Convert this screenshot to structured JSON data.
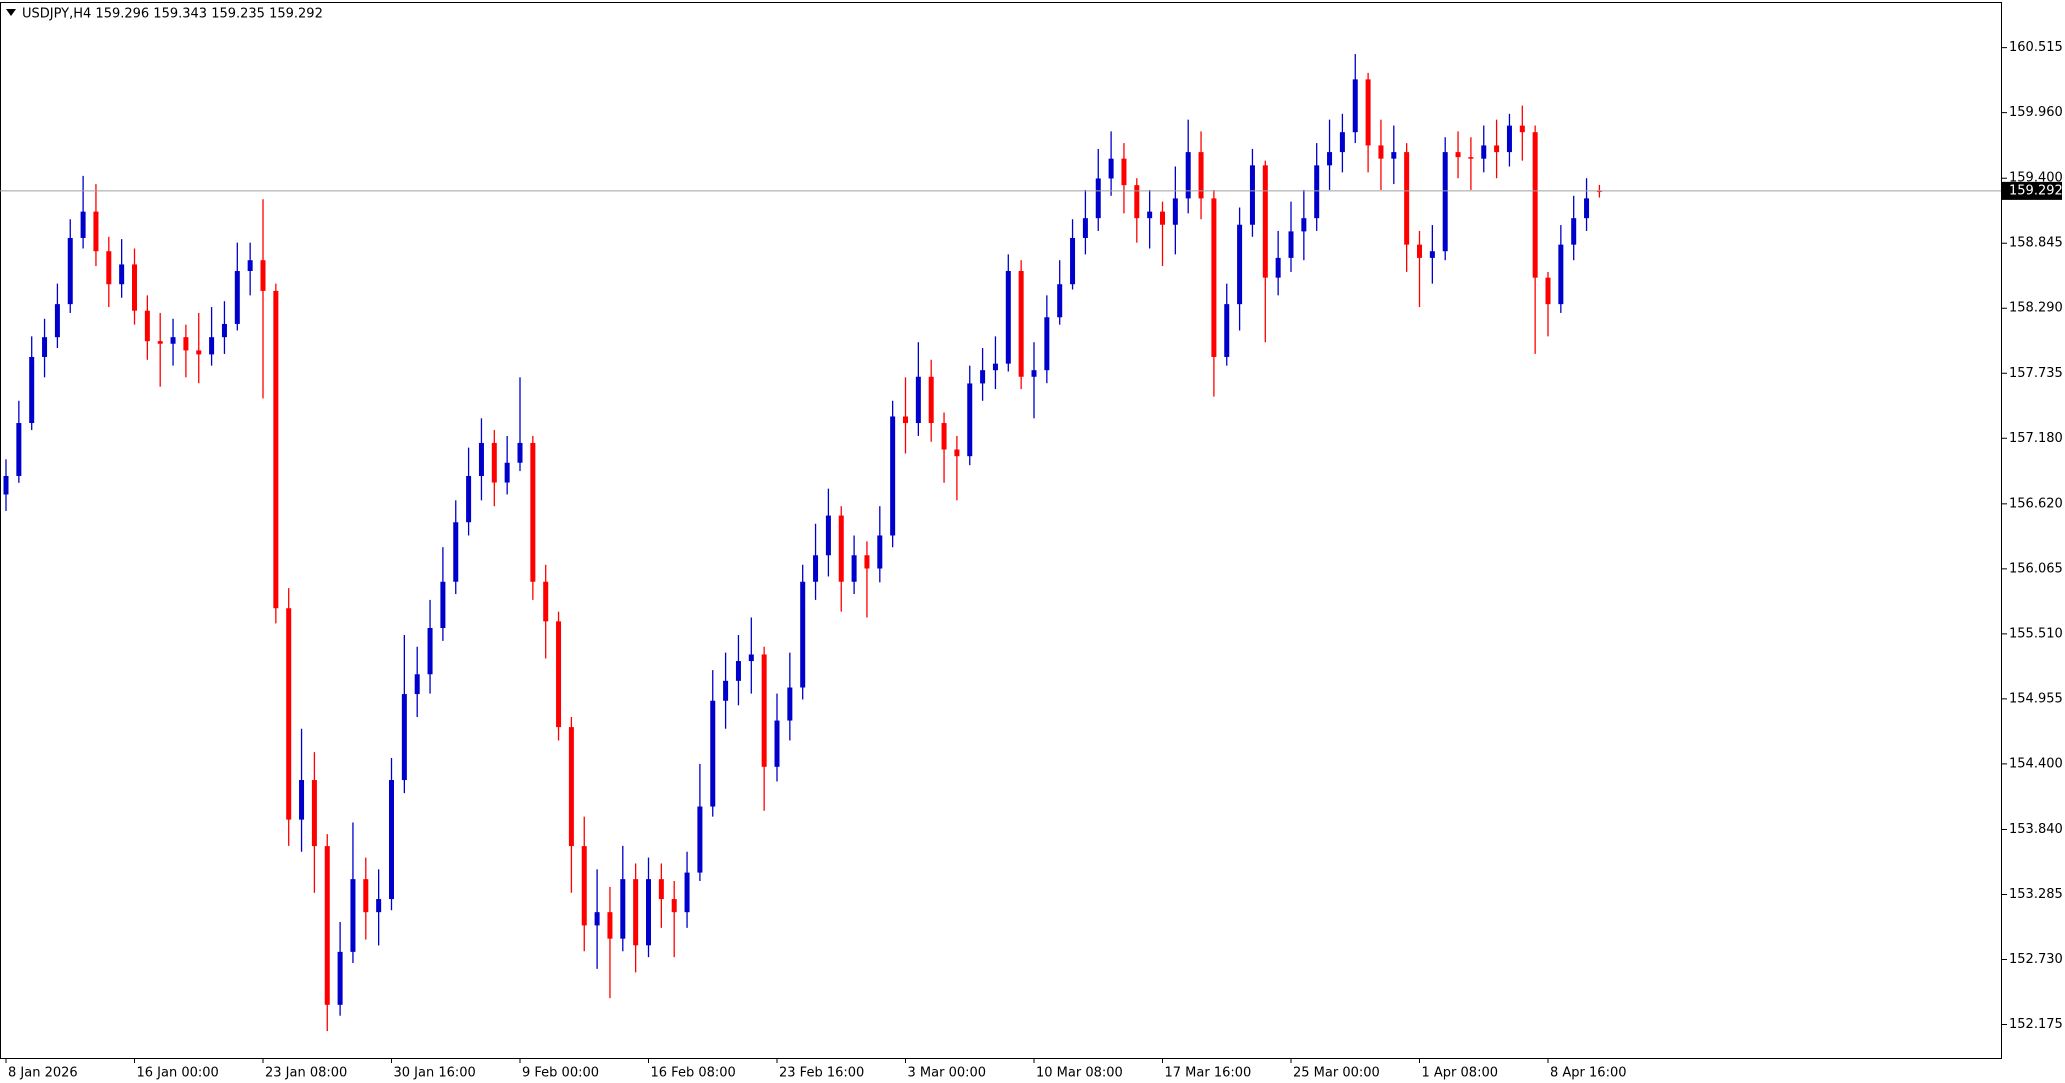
{
  "chart_data": {
    "type": "candlestick",
    "title": "USDJPY,H4  159.296 159.343 159.235 159.292",
    "up_color": "#0000cc",
    "down_color": "#ff0000",
    "last_price": 159.292,
    "last_price_line_color": "#a0a0a0",
    "grid": false,
    "ylim": [
      151.889,
      160.896
    ],
    "yticks": [
      160.515,
      {
        "value": 159.96,
        "label": "159.960"
      },
      {
        "value": 159.4,
        "label": "159.400"
      },
      158.845,
      {
        "value": 158.29,
        "label": "158.290"
      },
      157.735,
      {
        "value": 157.18,
        "label": "157.180"
      },
      {
        "value": 156.62,
        "label": "156.620"
      },
      156.065,
      {
        "value": 155.51,
        "label": "155.510"
      },
      154.955,
      {
        "value": 154.4,
        "label": "154.400"
      },
      {
        "value": 153.84,
        "label": "153.840"
      },
      153.285,
      {
        "value": 152.73,
        "label": "152.730"
      },
      152.175
    ],
    "categories": [
      "8 Jan 2026",
      null,
      null,
      null,
      null,
      null,
      null,
      null,
      null,
      null,
      "16 Jan 00:00",
      null,
      null,
      null,
      null,
      null,
      null,
      null,
      null,
      null,
      "23 Jan 08:00",
      null,
      null,
      null,
      null,
      null,
      null,
      null,
      null,
      null,
      "30 Jan 16:00",
      null,
      null,
      null,
      null,
      null,
      null,
      null,
      null,
      null,
      "9 Feb 00:00",
      null,
      null,
      null,
      null,
      null,
      null,
      null,
      null,
      null,
      "16 Feb 08:00",
      null,
      null,
      null,
      null,
      null,
      null,
      null,
      null,
      null,
      "23 Feb 16:00",
      null,
      null,
      null,
      null,
      null,
      null,
      null,
      null,
      null,
      "3 Mar 00:00",
      null,
      null,
      null,
      null,
      null,
      null,
      null,
      null,
      null,
      "10 Mar 08:00",
      null,
      null,
      null,
      null,
      null,
      null,
      null,
      null,
      null,
      "17 Mar 16:00",
      null,
      null,
      null,
      null,
      null,
      null,
      null,
      null,
      null,
      "25 Mar 00:00",
      null,
      null,
      null,
      null,
      null,
      null,
      null,
      null,
      null,
      "1 Apr 08:00",
      null,
      null,
      null,
      null,
      null,
      null,
      null,
      null,
      null,
      "8 Apr 16:00",
      null,
      null,
      null,
      null
    ],
    "open": [
      156.7,
      156.858,
      157.31,
      157.874,
      158.043,
      158.325,
      158.89,
      159.115,
      158.777,
      158.495,
      158.664,
      158.269,
      158.009,
      157.987,
      158.043,
      157.93,
      157.896,
      158.043,
      158.156,
      158.608,
      158.7,
      158.438,
      155.729,
      153.924,
      154.262,
      153.698,
      152.343,
      152.795,
      153.416,
      153.134,
      153.246,
      154.262,
      154.996,
      155.165,
      155.56,
      155.955,
      156.463,
      156.858,
      157.14,
      156.802,
      156.971,
      157.14,
      155.955,
      155.617,
      154.714,
      153.698,
      153.021,
      153.134,
      152.908,
      153.416,
      152.851,
      153.416,
      153.246,
      153.134,
      153.472,
      154.036,
      154.939,
      155.109,
      155.278,
      155.334,
      154.375,
      154.77,
      155.052,
      155.955,
      156.181,
      156.52,
      155.955,
      156.181,
      156.068,
      156.35,
      157.366,
      157.31,
      157.705,
      157.31,
      157.084,
      157.027,
      157.648,
      157.761,
      157.817,
      158.608,
      157.705,
      157.761,
      158.213,
      158.495,
      158.89,
      159.059,
      159.398,
      159.567,
      159.341,
      159.059,
      159.115,
      159.003,
      159.228,
      159.623,
      159.228,
      157.874,
      158.325,
      159.003,
      159.51,
      158.551,
      158.72,
      158.946,
      159.059,
      159.51,
      159.623,
      159.793,
      160.244,
      159.68,
      159.567,
      159.623,
      158.833,
      158.72,
      158.777,
      159.623,
      159.58,
      159.567,
      159.68,
      159.623,
      159.849,
      159.793,
      158.551,
      158.325,
      158.833,
      159.059,
      159.296
    ],
    "high": [
      157.0,
      157.5,
      158.05,
      158.2,
      158.5,
      159.05,
      159.42,
      159.35,
      158.9,
      158.88,
      158.8,
      158.4,
      158.25,
      158.2,
      158.15,
      158.25,
      158.3,
      158.35,
      158.85,
      158.85,
      159.22,
      158.5,
      155.9,
      154.7,
      154.5,
      153.8,
      153.05,
      153.9,
      153.6,
      153.5,
      154.45,
      155.5,
      155.4,
      155.8,
      156.25,
      156.65,
      157.1,
      157.35,
      157.25,
      157.2,
      157.7,
      157.2,
      156.1,
      155.7,
      154.8,
      153.95,
      153.5,
      153.35,
      153.7,
      153.55,
      153.6,
      153.55,
      153.4,
      153.65,
      154.4,
      155.2,
      155.35,
      155.5,
      155.65,
      155.4,
      155.0,
      155.35,
      156.1,
      156.45,
      156.75,
      156.6,
      156.35,
      156.3,
      156.6,
      157.5,
      157.7,
      158.0,
      157.85,
      157.4,
      157.2,
      157.8,
      157.95,
      158.05,
      158.75,
      158.7,
      158.0,
      158.4,
      158.7,
      159.05,
      159.3,
      159.65,
      159.8,
      159.7,
      159.4,
      159.3,
      159.2,
      159.5,
      159.9,
      159.8,
      159.3,
      158.5,
      159.15,
      159.65,
      159.55,
      158.95,
      159.2,
      159.3,
      159.7,
      159.9,
      159.95,
      160.46,
      160.3,
      159.9,
      159.85,
      159.7,
      158.95,
      159.0,
      159.75,
      159.8,
      159.75,
      159.85,
      159.9,
      159.95,
      160.02,
      159.85,
      158.6,
      159.0,
      159.25,
      159.4,
      159.343
    ],
    "low": [
      156.56,
      156.8,
      157.25,
      157.7,
      157.95,
      158.25,
      158.8,
      158.65,
      158.3,
      158.38,
      158.15,
      157.85,
      157.62,
      157.8,
      157.7,
      157.65,
      157.8,
      157.9,
      158.1,
      158.4,
      157.52,
      155.6,
      153.7,
      153.65,
      153.3,
      152.118,
      152.25,
      152.7,
      152.9,
      152.85,
      153.15,
      154.15,
      154.8,
      155.0,
      155.45,
      155.85,
      156.35,
      156.65,
      156.6,
      156.7,
      156.9,
      155.8,
      155.3,
      154.6,
      153.3,
      152.8,
      152.65,
      152.4,
      152.8,
      152.62,
      152.75,
      153.0,
      152.75,
      153.0,
      153.4,
      153.95,
      154.7,
      154.9,
      155.0,
      154.0,
      154.25,
      154.6,
      154.95,
      155.8,
      156.0,
      155.7,
      155.85,
      155.65,
      155.95,
      156.25,
      157.05,
      157.2,
      157.15,
      156.8,
      156.65,
      156.95,
      157.5,
      157.6,
      157.75,
      157.6,
      157.35,
      157.65,
      158.15,
      158.45,
      158.75,
      158.95,
      159.25,
      159.1,
      158.85,
      158.8,
      158.65,
      158.75,
      159.1,
      159.05,
      157.535,
      157.8,
      158.1,
      158.9,
      158.0,
      158.4,
      158.6,
      158.7,
      158.95,
      159.3,
      159.45,
      159.7,
      159.45,
      159.3,
      159.35,
      158.6,
      158.3,
      158.5,
      158.7,
      159.4,
      159.3,
      159.45,
      159.4,
      159.5,
      159.55,
      157.9,
      158.05,
      158.25,
      158.7,
      158.95,
      159.235
    ],
    "close": [
      156.858,
      157.31,
      157.874,
      158.043,
      158.325,
      158.89,
      159.115,
      158.777,
      158.495,
      158.664,
      158.269,
      158.009,
      157.987,
      158.043,
      157.93,
      157.896,
      158.043,
      158.156,
      158.608,
      158.7,
      158.438,
      155.729,
      153.924,
      154.262,
      153.698,
      152.343,
      152.795,
      153.416,
      153.134,
      153.246,
      154.262,
      154.996,
      155.165,
      155.56,
      155.955,
      156.463,
      156.858,
      157.14,
      156.802,
      156.971,
      157.14,
      155.955,
      155.617,
      154.714,
      153.698,
      153.021,
      153.134,
      152.908,
      153.416,
      152.851,
      153.416,
      153.246,
      153.134,
      153.472,
      154.036,
      154.939,
      155.109,
      155.278,
      155.334,
      154.375,
      154.77,
      155.052,
      155.955,
      156.181,
      156.52,
      155.955,
      156.181,
      156.068,
      156.35,
      157.366,
      157.31,
      157.705,
      157.31,
      157.084,
      157.027,
      157.648,
      157.761,
      157.817,
      158.608,
      157.705,
      157.761,
      158.213,
      158.495,
      158.89,
      159.059,
      159.398,
      159.567,
      159.341,
      159.059,
      159.115,
      159.003,
      159.228,
      159.623,
      159.228,
      157.874,
      158.325,
      159.003,
      159.51,
      158.551,
      158.72,
      158.946,
      159.059,
      159.51,
      159.623,
      159.793,
      160.244,
      159.68,
      159.567,
      159.623,
      158.833,
      158.72,
      158.777,
      159.623,
      159.58,
      159.567,
      159.68,
      159.623,
      159.849,
      159.793,
      158.551,
      158.325,
      158.833,
      159.059,
      159.228,
      159.292
    ]
  }
}
